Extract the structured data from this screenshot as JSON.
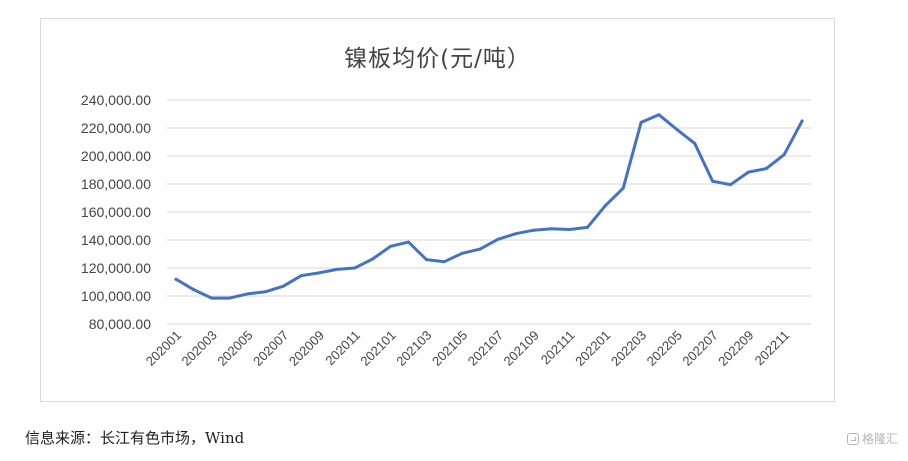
{
  "chart_data": {
    "type": "line",
    "title": "镍板均价(元/吨）",
    "xlabel": "",
    "ylabel": "",
    "ylim": [
      80000,
      240000
    ],
    "yticks": [
      "80,000.00",
      "100,000.00",
      "120,000.00",
      "140,000.00",
      "160,000.00",
      "180,000.00",
      "200,000.00",
      "220,000.00",
      "240,000.00"
    ],
    "ytick_values": [
      80000,
      100000,
      120000,
      140000,
      160000,
      180000,
      200000,
      220000,
      240000
    ],
    "x_labels": [
      "202001",
      "202003",
      "202005",
      "202007",
      "202009",
      "202011",
      "202101",
      "202103",
      "202105",
      "202107",
      "202109",
      "202111",
      "202201",
      "202203",
      "202205",
      "202207",
      "202209",
      "202211"
    ],
    "x": [
      "202001",
      "202002",
      "202003",
      "202004",
      "202005",
      "202006",
      "202007",
      "202008",
      "202009",
      "202010",
      "202011",
      "202012",
      "202101",
      "202102",
      "202103",
      "202104",
      "202105",
      "202106",
      "202107",
      "202108",
      "202109",
      "202110",
      "202111",
      "202112",
      "202201",
      "202202",
      "202203",
      "202204",
      "202205",
      "202206",
      "202207",
      "202208",
      "202209",
      "202210",
      "202211",
      "202212"
    ],
    "series": [
      {
        "color": "#4472C4",
        "values": [
          112000,
          104500,
          98500,
          98500,
          101500,
          103000,
          107000,
          114500,
          116500,
          119000,
          120000,
          126500,
          135500,
          138500,
          126000,
          124500,
          130500,
          133500,
          140500,
          144500,
          147000,
          148000,
          147500,
          149000,
          164500,
          177000,
          224000,
          229500,
          219000,
          209000,
          182000,
          179500,
          188500,
          191000,
          201000,
          225000
        ]
      }
    ],
    "grid": true,
    "legend": "none"
  },
  "footer": {
    "source": "信息来源：长江有色市场，Wind",
    "watermark": "格隆汇"
  }
}
